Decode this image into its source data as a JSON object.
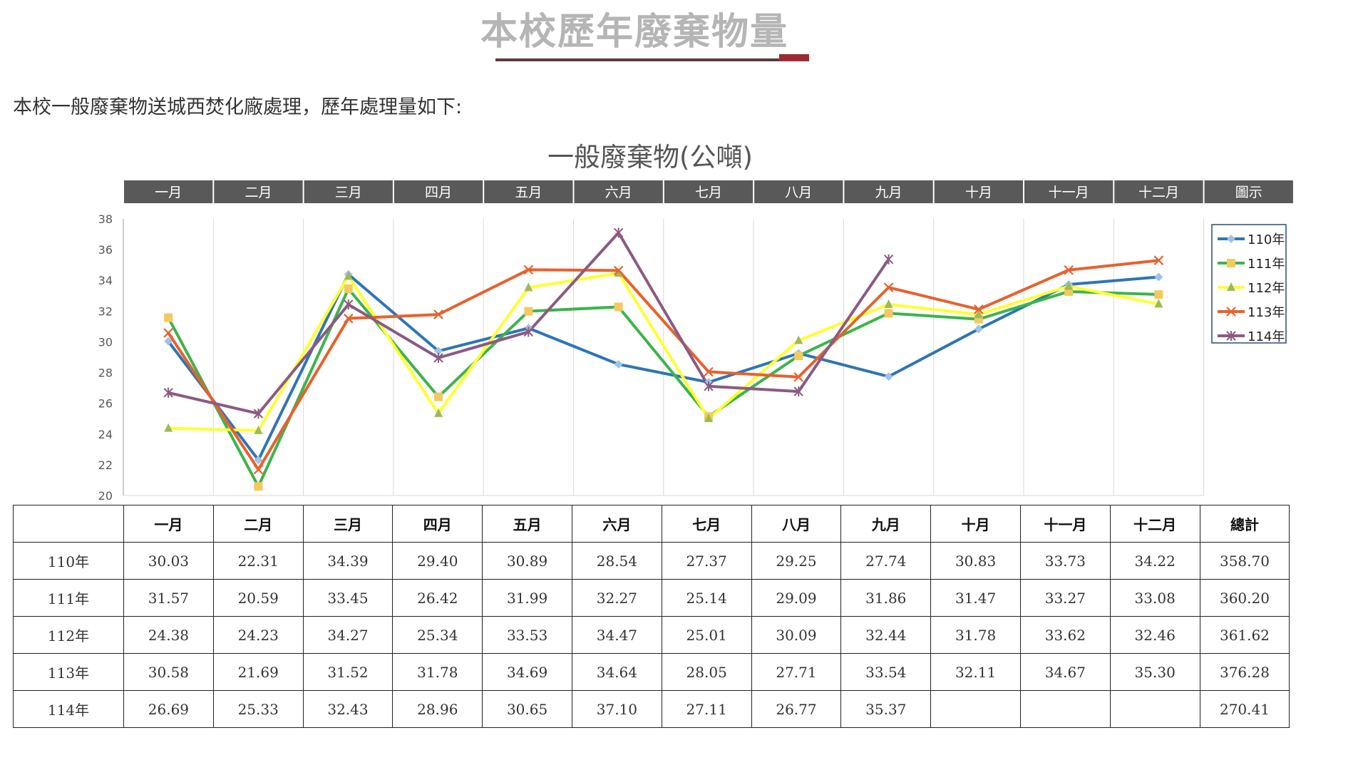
{
  "page": {
    "title": "本校歷年廢棄物量",
    "intro": "本校一般廢棄物送城西焚化廠處理，歷年處理量如下:"
  },
  "chart_data": {
    "type": "line",
    "title": "一般廢棄物(公噸)",
    "categories": [
      "一月",
      "二月",
      "三月",
      "四月",
      "五月",
      "六月",
      "七月",
      "八月",
      "九月",
      "十月",
      "十一月",
      "十二月"
    ],
    "header_bar": [
      "一月",
      "二月",
      "三月",
      "四月",
      "五月",
      "六月",
      "七月",
      "八月",
      "九月",
      "十月",
      "十一月",
      "十二月",
      "圖示"
    ],
    "ylim": [
      20,
      38
    ],
    "yticks": [
      "20",
      "22",
      "24",
      "26",
      "28",
      "30",
      "32",
      "34",
      "36",
      "38"
    ],
    "grid": "vertical",
    "legend_position": "top-right",
    "series": [
      {
        "name": "110年",
        "color": "#2e75b6",
        "marker": "diamond",
        "marker_color": "#9dc3e6",
        "values": [
          30.03,
          22.31,
          34.39,
          29.4,
          30.89,
          28.54,
          27.37,
          29.25,
          27.74,
          30.83,
          33.73,
          34.22
        ]
      },
      {
        "name": "111年",
        "color": "#3cb44b",
        "marker": "square",
        "marker_color": "#f4c95d",
        "values": [
          31.57,
          20.59,
          33.45,
          26.42,
          31.99,
          32.27,
          25.14,
          29.09,
          31.86,
          31.47,
          33.27,
          33.08
        ]
      },
      {
        "name": "112年",
        "color": "#ffff33",
        "marker": "triangle",
        "marker_color": "#9bbb59",
        "values": [
          24.38,
          24.23,
          34.27,
          25.34,
          33.53,
          34.47,
          25.01,
          30.09,
          32.44,
          31.78,
          33.62,
          32.46
        ]
      },
      {
        "name": "113年",
        "color": "#e8612c",
        "marker": "x",
        "marker_color": "#e8612c",
        "values": [
          30.58,
          21.69,
          31.52,
          31.78,
          34.69,
          34.64,
          28.05,
          27.71,
          33.54,
          32.11,
          34.67,
          35.3
        ]
      },
      {
        "name": "114年",
        "color": "#8b5a83",
        "marker": "star",
        "marker_color": "#8b5a83",
        "values": [
          26.69,
          25.33,
          32.43,
          28.96,
          30.65,
          37.1,
          27.11,
          26.77,
          35.37,
          null,
          null,
          null
        ]
      }
    ]
  },
  "table": {
    "headers": [
      "",
      "一月",
      "二月",
      "三月",
      "四月",
      "五月",
      "六月",
      "七月",
      "八月",
      "九月",
      "十月",
      "十一月",
      "十二月",
      "總計"
    ],
    "rows": [
      [
        "110年",
        "30.03",
        "22.31",
        "34.39",
        "29.40",
        "30.89",
        "28.54",
        "27.37",
        "29.25",
        "27.74",
        "30.83",
        "33.73",
        "34.22",
        "358.70"
      ],
      [
        "111年",
        "31.57",
        "20.59",
        "33.45",
        "26.42",
        "31.99",
        "32.27",
        "25.14",
        "29.09",
        "31.86",
        "31.47",
        "33.27",
        "33.08",
        "360.20"
      ],
      [
        "112年",
        "24.38",
        "24.23",
        "34.27",
        "25.34",
        "33.53",
        "34.47",
        "25.01",
        "30.09",
        "32.44",
        "31.78",
        "33.62",
        "32.46",
        "361.62"
      ],
      [
        "113年",
        "30.58",
        "21.69",
        "31.52",
        "31.78",
        "34.69",
        "34.64",
        "28.05",
        "27.71",
        "33.54",
        "32.11",
        "34.67",
        "35.30",
        "376.28"
      ],
      [
        "114年",
        "26.69",
        "25.33",
        "32.43",
        "28.96",
        "30.65",
        "37.10",
        "27.11",
        "26.77",
        "35.37",
        "",
        "",
        "",
        "270.41"
      ]
    ]
  }
}
